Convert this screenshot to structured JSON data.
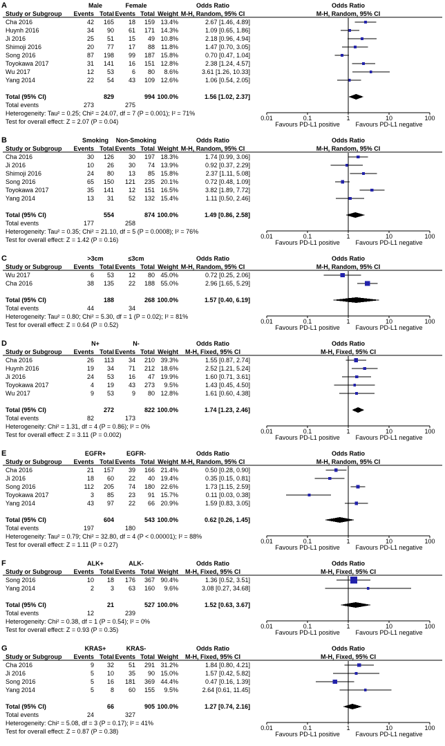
{
  "chart_data": {
    "type": "forest",
    "or_header": "Odds Ratio",
    "column_headers": {
      "study": "Study or Subgroup",
      "events": "Events",
      "total": "Total",
      "weight": "Weight"
    },
    "total_label": "Total (95% CI)",
    "total_events_label": "Total events",
    "axis_ticks": [
      0.01,
      0.1,
      1,
      10,
      100
    ],
    "favours_left": "Favours PD-L1 positive",
    "favours_right": "Favours PD-L1 negative",
    "colors": {
      "marker": "#2323ab",
      "diamond": "#000000",
      "line": "#000000"
    },
    "panels": [
      {
        "label": "A",
        "group1": "Male",
        "group2": "Female",
        "model": "M-H, Random, 95% CI",
        "studies": [
          {
            "study": "Cha 2016",
            "events1": 42,
            "total1": 165,
            "events2": 18,
            "total2": 159,
            "weight": "13.4%",
            "or": 2.67,
            "ci_low": 1.46,
            "ci_high": 4.89,
            "ci_text": "2.67 [1.46, 4.89]"
          },
          {
            "study": "Huynh 2016",
            "events1": 34,
            "total1": 90,
            "events2": 61,
            "total2": 171,
            "weight": "14.3%",
            "or": 1.09,
            "ci_low": 0.65,
            "ci_high": 1.86,
            "ci_text": "1.09 [0.65, 1.86]"
          },
          {
            "study": "Ji 2016",
            "events1": 25,
            "total1": 51,
            "events2": 15,
            "total2": 49,
            "weight": "10.8%",
            "or": 2.18,
            "ci_low": 0.96,
            "ci_high": 4.94,
            "ci_text": "2.18 [0.96, 4.94]"
          },
          {
            "study": "Shimoji 2016",
            "events1": 20,
            "total1": 77,
            "events2": 17,
            "total2": 88,
            "weight": "11.8%",
            "or": 1.47,
            "ci_low": 0.7,
            "ci_high": 3.05,
            "ci_text": "1.47 [0.70, 3.05]"
          },
          {
            "study": "Song 2016",
            "events1": 87,
            "total1": 198,
            "events2": 99,
            "total2": 187,
            "weight": "15.8%",
            "or": 0.7,
            "ci_low": 0.47,
            "ci_high": 1.04,
            "ci_text": "0.70 [0.47, 1.04]"
          },
          {
            "study": "Toyokawa 2017",
            "events1": 31,
            "total1": 141,
            "events2": 16,
            "total2": 151,
            "weight": "12.8%",
            "or": 2.38,
            "ci_low": 1.24,
            "ci_high": 4.57,
            "ci_text": "2.38 [1.24, 4.57]"
          },
          {
            "study": "Wu 2017",
            "events1": 12,
            "total1": 53,
            "events2": 6,
            "total2": 80,
            "weight": "8.6%",
            "or": 3.61,
            "ci_low": 1.26,
            "ci_high": 10.33,
            "ci_text": "3.61 [1.26, 10.33]"
          },
          {
            "study": "Yang 2014",
            "events1": 22,
            "total1": 54,
            "events2": 43,
            "total2": 109,
            "weight": "12.6%",
            "or": 1.06,
            "ci_low": 0.54,
            "ci_high": 2.05,
            "ci_text": "1.06 [0.54, 2.05]"
          }
        ],
        "total": {
          "total1": 829,
          "total2": 994,
          "weight": "100.0%",
          "or": 1.56,
          "ci_low": 1.02,
          "ci_high": 2.37,
          "ci_text": "1.56 [1.02, 2.37]"
        },
        "total_events": {
          "events1": 273,
          "events2": 275
        },
        "heterogeneity": "Heterogeneity: Tau² = 0.25; Chi² = 24.07, df = 7 (P = 0.001); I² = 71%",
        "overall_test": "Test for overall effect: Z = 2.07 (P = 0.04)"
      },
      {
        "label": "B",
        "group1": "Smoking",
        "group2": "Non-Smoking",
        "model": "M-H, Random, 95% CI",
        "studies": [
          {
            "study": "Cha 2016",
            "events1": 30,
            "total1": 126,
            "events2": 30,
            "total2": 197,
            "weight": "18.3%",
            "or": 1.74,
            "ci_low": 0.99,
            "ci_high": 3.06,
            "ci_text": "1.74 [0.99, 3.06]"
          },
          {
            "study": "Ji 2016",
            "events1": 10,
            "total1": 26,
            "events2": 30,
            "total2": 74,
            "weight": "13.9%",
            "or": 0.92,
            "ci_low": 0.37,
            "ci_high": 2.29,
            "ci_text": "0.92 [0.37, 2.29]"
          },
          {
            "study": "Shimoji 2016",
            "events1": 24,
            "total1": 80,
            "events2": 13,
            "total2": 85,
            "weight": "15.8%",
            "or": 2.37,
            "ci_low": 1.11,
            "ci_high": 5.08,
            "ci_text": "2.37 [1.11, 5.08]"
          },
          {
            "study": "Song 2016",
            "events1": 65,
            "total1": 150,
            "events2": 121,
            "total2": 235,
            "weight": "20.1%",
            "or": 0.72,
            "ci_low": 0.48,
            "ci_high": 1.09,
            "ci_text": "0.72 [0.48, 1.09]"
          },
          {
            "study": "Toyokawa 2017",
            "events1": 35,
            "total1": 141,
            "events2": 12,
            "total2": 151,
            "weight": "16.5%",
            "or": 3.82,
            "ci_low": 1.89,
            "ci_high": 7.72,
            "ci_text": "3.82 [1.89, 7.72]"
          },
          {
            "study": "Yang 2014",
            "events1": 13,
            "total1": 31,
            "events2": 52,
            "total2": 132,
            "weight": "15.4%",
            "or": 1.11,
            "ci_low": 0.5,
            "ci_high": 2.46,
            "ci_text": "1.11 [0.50, 2.46]"
          }
        ],
        "total": {
          "total1": 554,
          "total2": 874,
          "weight": "100.0%",
          "or": 1.49,
          "ci_low": 0.86,
          "ci_high": 2.58,
          "ci_text": "1.49 [0.86, 2.58]"
        },
        "total_events": {
          "events1": 177,
          "events2": 258
        },
        "heterogeneity": "Heterogeneity: Tau² = 0.35; Chi² = 21.10, df = 5 (P = 0.0008); I² = 76%",
        "overall_test": "Test for overall effect: Z = 1.42 (P = 0.16)"
      },
      {
        "label": "C",
        "group1": ">3cm",
        "group2": "≤3cm",
        "model": "M-H, Random, 95% CI",
        "studies": [
          {
            "study": "Wu 2017",
            "events1": 6,
            "total1": 53,
            "events2": 12,
            "total2": 80,
            "weight": "45.0%",
            "or": 0.72,
            "ci_low": 0.25,
            "ci_high": 2.06,
            "ci_text": "0.72 [0.25, 2.06]"
          },
          {
            "study": "Cha 2016",
            "events1": 38,
            "total1": 135,
            "events2": 22,
            "total2": 188,
            "weight": "55.0%",
            "or": 2.96,
            "ci_low": 1.65,
            "ci_high": 5.29,
            "ci_text": "2.96 [1.65, 5.29]"
          }
        ],
        "total": {
          "total1": 188,
          "total2": 268,
          "weight": "100.0%",
          "or": 1.57,
          "ci_low": 0.4,
          "ci_high": 6.19,
          "ci_text": "1.57 [0.40, 6.19]"
        },
        "total_events": {
          "events1": 44,
          "events2": 34
        },
        "heterogeneity": "Heterogeneity: Tau² = 0.80; Chi² = 5.30, df = 1 (P = 0.02); I² = 81%",
        "overall_test": "Test for overall effect: Z = 0.64 (P = 0.52)"
      },
      {
        "label": "D",
        "group1": "N+",
        "group2": "N-",
        "model": "M-H, Fixed, 95% CI",
        "studies": [
          {
            "study": "Cha 2016",
            "events1": 26,
            "total1": 113,
            "events2": 34,
            "total2": 210,
            "weight": "39.3%",
            "or": 1.55,
            "ci_low": 0.87,
            "ci_high": 2.74,
            "ci_text": "1.55 [0.87, 2.74]"
          },
          {
            "study": "Huynh 2016",
            "events1": 19,
            "total1": 34,
            "events2": 71,
            "total2": 212,
            "weight": "18.6%",
            "or": 2.52,
            "ci_low": 1.21,
            "ci_high": 5.24,
            "ci_text": "2.52 [1.21, 5.24]"
          },
          {
            "study": "Ji 2016",
            "events1": 24,
            "total1": 53,
            "events2": 16,
            "total2": 47,
            "weight": "19.9%",
            "or": 1.6,
            "ci_low": 0.71,
            "ci_high": 3.61,
            "ci_text": "1.60 [0.71, 3.61]"
          },
          {
            "study": "Toyokawa 2017",
            "events1": 4,
            "total1": 19,
            "events2": 43,
            "total2": 273,
            "weight": "9.5%",
            "or": 1.43,
            "ci_low": 0.45,
            "ci_high": 4.5,
            "ci_text": "1.43 [0.45, 4.50]"
          },
          {
            "study": "Wu 2017",
            "events1": 9,
            "total1": 53,
            "events2": 9,
            "total2": 80,
            "weight": "12.8%",
            "or": 1.61,
            "ci_low": 0.6,
            "ci_high": 4.38,
            "ci_text": "1.61 [0.60, 4.38]"
          }
        ],
        "total": {
          "total1": 272,
          "total2": 822,
          "weight": "100.0%",
          "or": 1.74,
          "ci_low": 1.23,
          "ci_high": 2.46,
          "ci_text": "1.74 [1.23, 2.46]"
        },
        "total_events": {
          "events1": 82,
          "events2": 173
        },
        "heterogeneity": "Heterogeneity: Chi² = 1.31, df = 4 (P = 0.86); I² = 0%",
        "overall_test": "Test for overall effect: Z = 3.11 (P = 0.002)"
      },
      {
        "label": "E",
        "group1": "EGFR+",
        "group2": "EGFR-",
        "model": "M-H, Random, 95% CI",
        "studies": [
          {
            "study": "Cha 2016",
            "events1": 21,
            "total1": 157,
            "events2": 39,
            "total2": 166,
            "weight": "21.4%",
            "or": 0.5,
            "ci_low": 0.28,
            "ci_high": 0.9,
            "ci_text": "0.50 [0.28, 0.90]"
          },
          {
            "study": "Ji 2016",
            "events1": 18,
            "total1": 60,
            "events2": 22,
            "total2": 40,
            "weight": "19.4%",
            "or": 0.35,
            "ci_low": 0.15,
            "ci_high": 0.81,
            "ci_text": "0.35 [0.15, 0.81]"
          },
          {
            "study": "Song 2016",
            "events1": 112,
            "total1": 205,
            "events2": 74,
            "total2": 180,
            "weight": "22.6%",
            "or": 1.73,
            "ci_low": 1.15,
            "ci_high": 2.59,
            "ci_text": "1.73 [1.15, 2.59]"
          },
          {
            "study": "Toyokawa 2017",
            "events1": 3,
            "total1": 85,
            "events2": 23,
            "total2": 91,
            "weight": "15.7%",
            "or": 0.11,
            "ci_low": 0.03,
            "ci_high": 0.38,
            "ci_text": "0.11 [0.03, 0.38]"
          },
          {
            "study": "Yang 2014",
            "events1": 43,
            "total1": 97,
            "events2": 22,
            "total2": 66,
            "weight": "20.9%",
            "or": 1.59,
            "ci_low": 0.83,
            "ci_high": 3.05,
            "ci_text": "1.59 [0.83, 3.05]"
          }
        ],
        "total": {
          "total1": 604,
          "total2": 543,
          "weight": "100.0%",
          "or": 0.62,
          "ci_low": 0.26,
          "ci_high": 1.45,
          "ci_text": "0.62 [0.26, 1.45]"
        },
        "total_events": {
          "events1": 197,
          "events2": 180
        },
        "heterogeneity": "Heterogeneity: Tau² = 0.79; Chi² = 32.80, df = 4 (P < 0.00001); I² = 88%",
        "overall_test": "Test for overall effect: Z = 1.11 (P = 0.27)"
      },
      {
        "label": "F",
        "group1": "ALK+",
        "group2": "ALK-",
        "model": "M-H, Fixed, 95% CI",
        "studies": [
          {
            "study": "Song 2016",
            "events1": 10,
            "total1": 18,
            "events2": 176,
            "total2": 367,
            "weight": "90.4%",
            "or": 1.36,
            "ci_low": 0.52,
            "ci_high": 3.51,
            "ci_text": "1.36 [0.52, 3.51]"
          },
          {
            "study": "Yang 2014",
            "events1": 2,
            "total1": 3,
            "events2": 63,
            "total2": 160,
            "weight": "9.6%",
            "or": 3.08,
            "ci_low": 0.27,
            "ci_high": 34.68,
            "ci_text": "3.08 [0.27, 34.68]"
          }
        ],
        "total": {
          "total1": 21,
          "total2": 527,
          "weight": "100.0%",
          "or": 1.52,
          "ci_low": 0.63,
          "ci_high": 3.67,
          "ci_text": "1.52 [0.63, 3.67]"
        },
        "total_events": {
          "events1": 12,
          "events2": 239
        },
        "heterogeneity": "Heterogeneity: Chi² = 0.38, df = 1 (P = 0.54); I² = 0%",
        "overall_test": "Test for overall effect: Z = 0.93 (P = 0.35)"
      },
      {
        "label": "G",
        "group1": "KRAS+",
        "group2": "KRAS-",
        "model": "M-H, Fixed, 95% CI",
        "studies": [
          {
            "study": "Cha 2016",
            "events1": 9,
            "total1": 32,
            "events2": 51,
            "total2": 291,
            "weight": "31.2%",
            "or": 1.84,
            "ci_low": 0.8,
            "ci_high": 4.21,
            "ci_text": "1.84 [0.80, 4.21]"
          },
          {
            "study": "Ji 2016",
            "events1": 5,
            "total1": 10,
            "events2": 35,
            "total2": 90,
            "weight": "15.0%",
            "or": 1.57,
            "ci_low": 0.42,
            "ci_high": 5.82,
            "ci_text": "1.57 [0.42, 5.82]"
          },
          {
            "study": "Song 2016",
            "events1": 5,
            "total1": 16,
            "events2": 181,
            "total2": 369,
            "weight": "44.4%",
            "or": 0.47,
            "ci_low": 0.16,
            "ci_high": 1.39,
            "ci_text": "0.47 [0.16, 1.39]"
          },
          {
            "study": "Yang 2014",
            "events1": 5,
            "total1": 8,
            "events2": 60,
            "total2": 155,
            "weight": "9.5%",
            "or": 2.64,
            "ci_low": 0.61,
            "ci_high": 11.45,
            "ci_text": "2.64 [0.61, 11.45]"
          }
        ],
        "total": {
          "total1": 66,
          "total2": 905,
          "weight": "100.0%",
          "or": 1.27,
          "ci_low": 0.74,
          "ci_high": 2.16,
          "ci_text": "1.27 [0.74, 2.16]"
        },
        "total_events": {
          "events1": 24,
          "events2": 327
        },
        "heterogeneity": "Heterogeneity: Chi² = 5.08, df = 3 (P = 0.17); I² = 41%",
        "overall_test": "Test for overall effect: Z = 0.87 (P = 0.38)"
      }
    ]
  }
}
